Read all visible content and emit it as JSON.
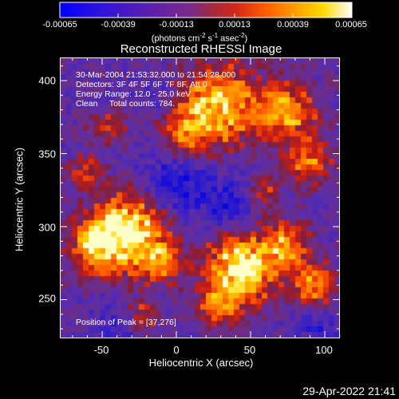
{
  "colorbar": {
    "tick_labels": [
      "-0.00065",
      "-0.00039",
      "-0.00013",
      "0.00013",
      "0.00039",
      "0.00065"
    ],
    "units_prefix": "(photons cm",
    "units_exp1": "-2",
    "units_mid1": " s",
    "units_exp2": "-1",
    "units_mid2": " asec",
    "units_exp3": "-2",
    "units_suffix": ")",
    "colors": [
      "#0000ff",
      "#4a1cc8",
      "#6b2aa8",
      "#8a2d80",
      "#b02a3a",
      "#e0301a",
      "#ff5a00",
      "#ff9a00",
      "#ffd400",
      "#ffffa0",
      "#ffffff"
    ]
  },
  "image": {
    "title": "Reconstructed RHESSI Image",
    "time_range": "30-Mar-2004 21:53:32.000 to 21:54:28.000",
    "detectors": "Detectors: 3F 4F 5F 6F 7F 8F, Att 0",
    "energy": "Energy Range: 12.0 - 25.0 keV",
    "clean": "Clean     Total counts: 784.",
    "peak": "Position of Peak = [37,276]"
  },
  "axes": {
    "xlabel": "Heliocentric X (arcsec)",
    "ylabel": "Heliocentric Y (arcsec)",
    "xticks": [
      "-50",
      "0",
      "50",
      "100"
    ],
    "yticks": [
      "400",
      "350",
      "300",
      "250"
    ]
  },
  "footer": {
    "datestamp": "29-Apr-2022 21:41"
  }
}
